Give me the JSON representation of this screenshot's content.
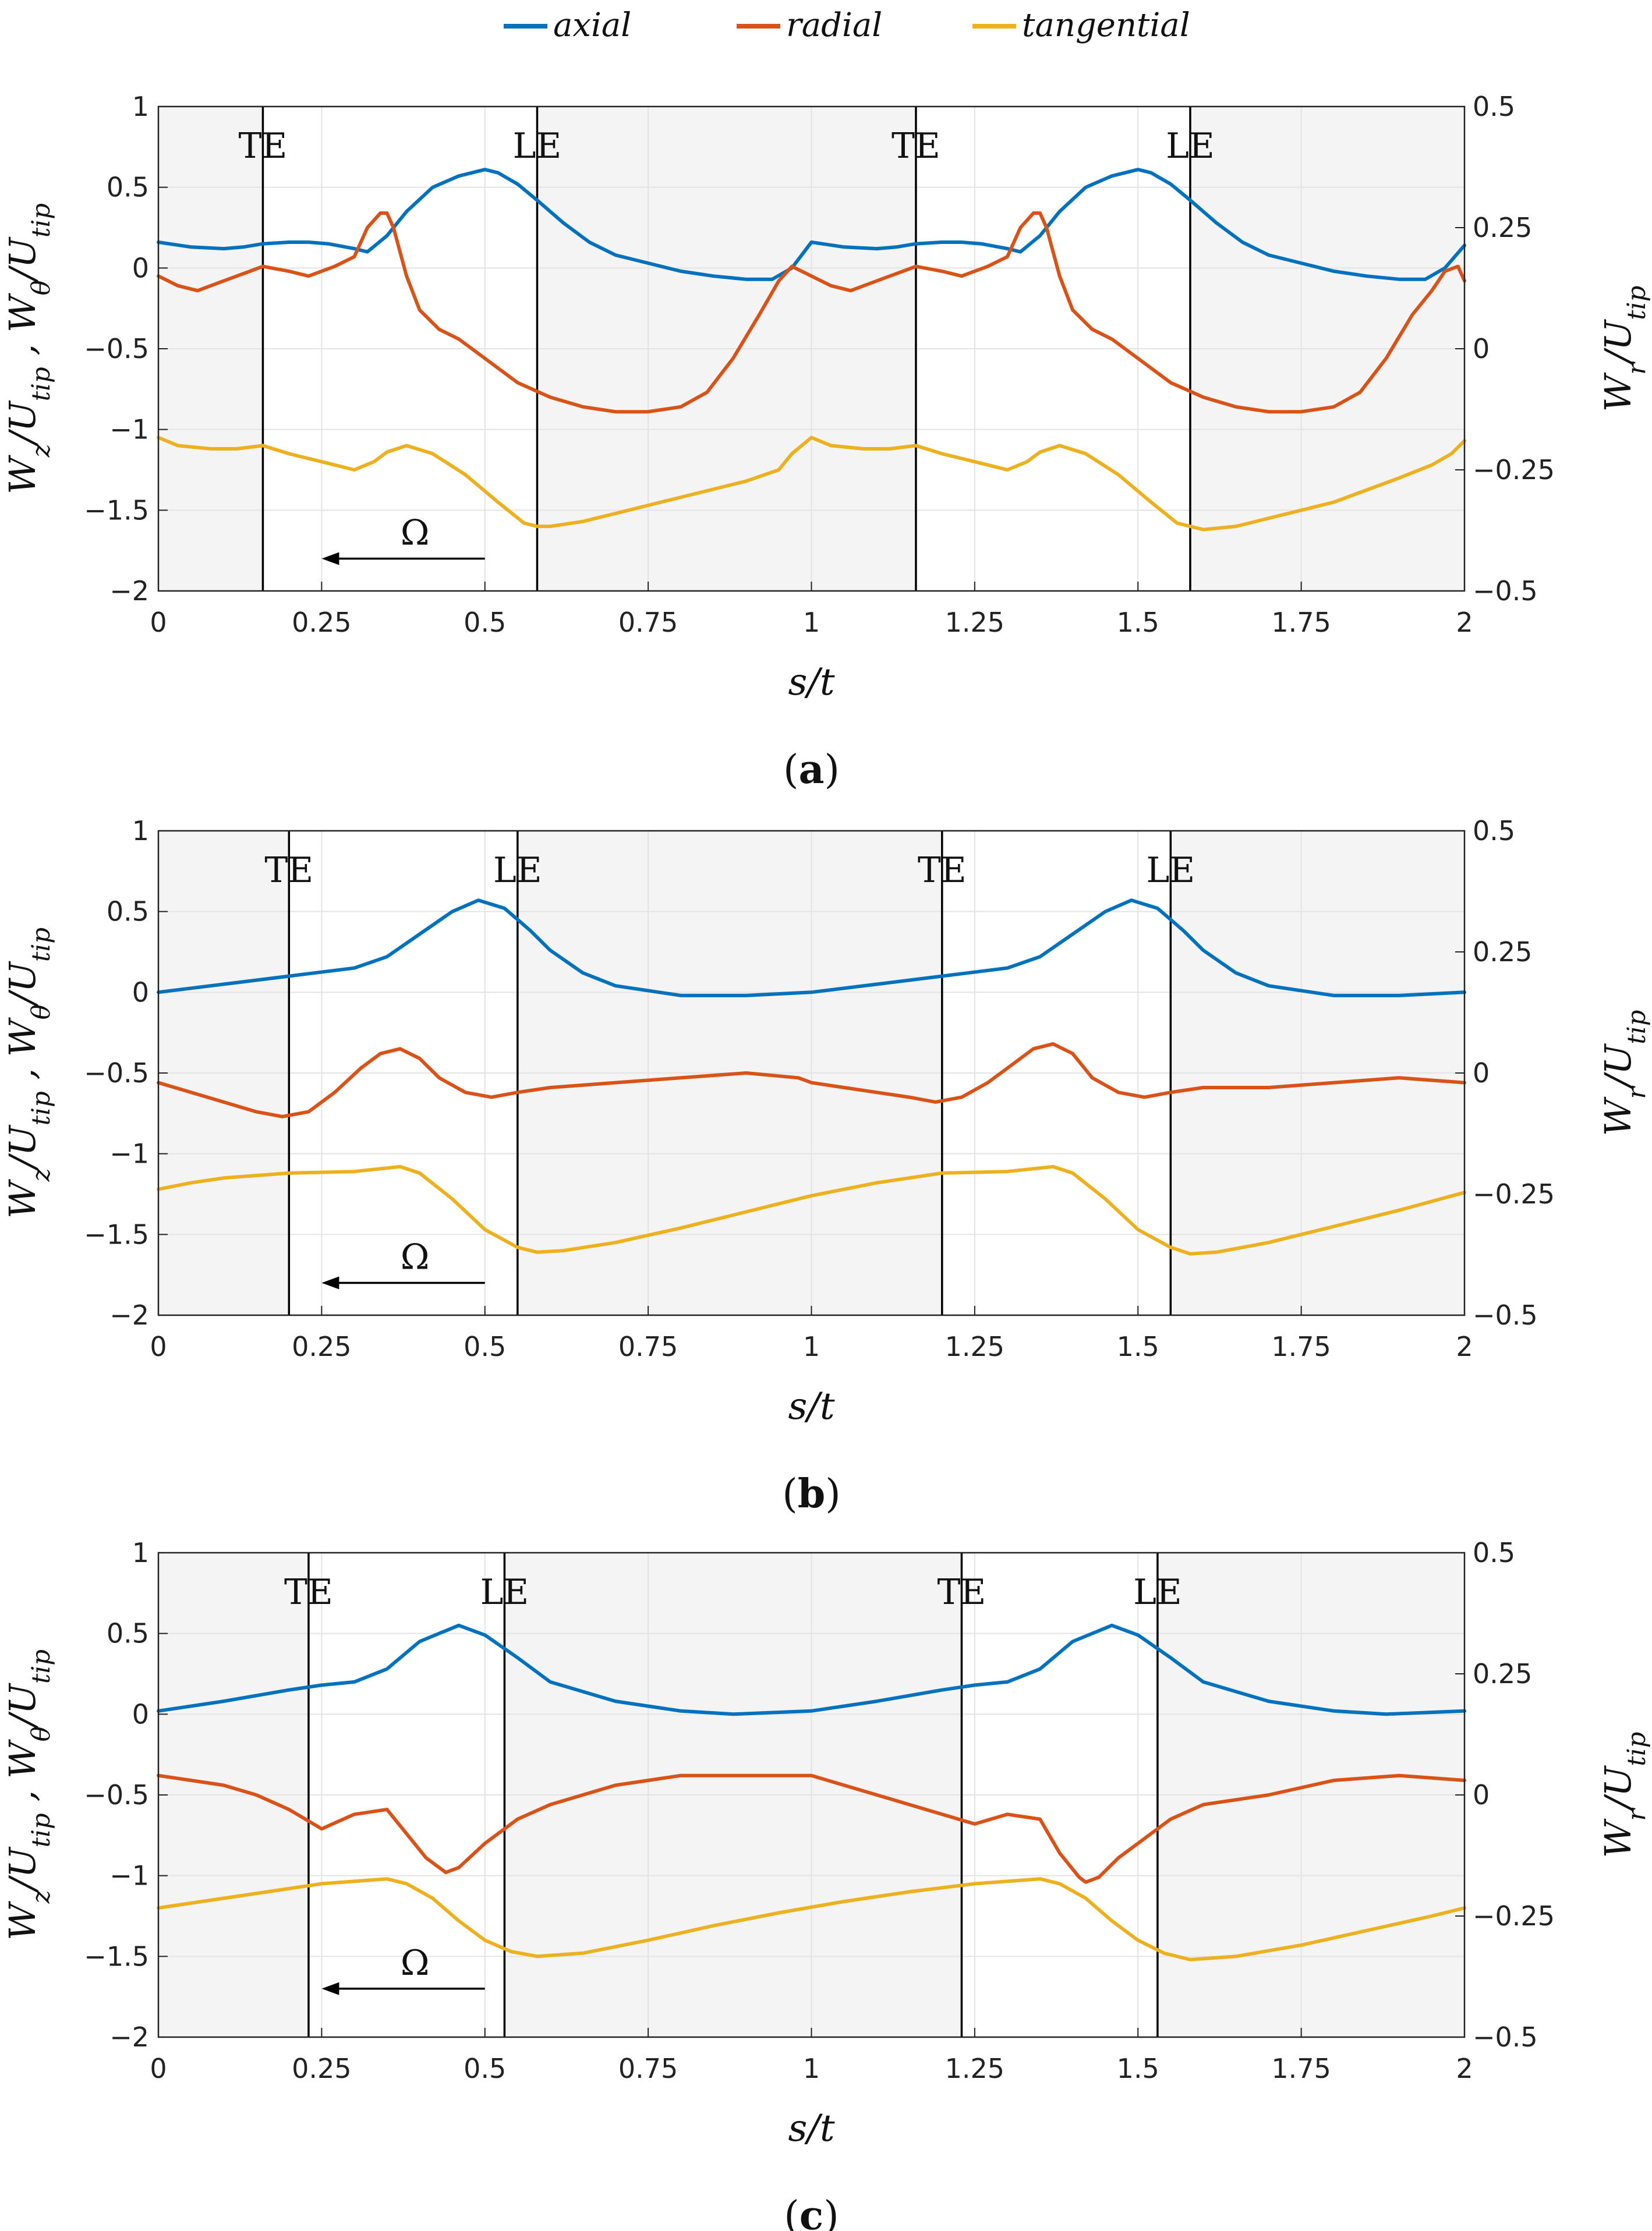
{
  "legend": {
    "placement": "top-center",
    "entries": [
      {
        "label": "axial",
        "color": "#0072BD"
      },
      {
        "label": "radial",
        "color": "#D95319"
      },
      {
        "label": "tangential",
        "color": "#EDB120"
      }
    ]
  },
  "chart_data": [
    {
      "type": "line",
      "caption_letter": "a",
      "xlabel": "s/t",
      "ylabel_left": "W_z/U_tip , W_θ/U_tip",
      "ylabel_right": "W_r/U_tip",
      "xlim": [
        0,
        2
      ],
      "ylim_left": [
        -2,
        1
      ],
      "ylim_right": [
        -0.5,
        0.5
      ],
      "x_ticks": [
        "0",
        "0.25",
        "0.5",
        "0.75",
        "1",
        "1.25",
        "1.5",
        "1.75",
        "2"
      ],
      "y_ticks_left": [
        "1",
        "0.5",
        "0",
        "-0.5",
        "-1",
        "-1.5",
        "-2"
      ],
      "y_ticks_right": [
        "0.5",
        "0.25",
        "0",
        "-0.25",
        "-0.5"
      ],
      "grid": true,
      "shaded_regions": [
        [
          0,
          0.16
        ],
        [
          0.58,
          1.16
        ],
        [
          1.58,
          2
        ]
      ],
      "vertical_lines": [
        {
          "x": 0.16,
          "label": "TE"
        },
        {
          "x": 0.58,
          "label": "LE"
        },
        {
          "x": 1.16,
          "label": "TE"
        },
        {
          "x": 1.58,
          "label": "LE"
        }
      ],
      "annotation": {
        "text": "Ω",
        "arrow_from": 0.5,
        "arrow_to": 0.25,
        "y": -1.8
      },
      "series": [
        {
          "name": "axial",
          "axis": "left",
          "color": "#0072BD",
          "x": [
            0,
            0.05,
            0.1,
            0.13,
            0.16,
            0.2,
            0.23,
            0.26,
            0.3,
            0.32,
            0.35,
            0.38,
            0.42,
            0.46,
            0.5,
            0.52,
            0.55,
            0.58,
            0.62,
            0.66,
            0.7,
            0.75,
            0.8,
            0.85,
            0.9,
            0.94,
            0.97,
            1,
            1.05,
            1.1,
            1.13,
            1.16,
            1.2,
            1.23,
            1.26,
            1.3,
            1.32,
            1.35,
            1.38,
            1.42,
            1.46,
            1.5,
            1.52,
            1.55,
            1.58,
            1.62,
            1.66,
            1.7,
            1.75,
            1.8,
            1.85,
            1.9,
            1.94,
            1.97,
            2
          ],
          "y": [
            0.16,
            0.13,
            0.12,
            0.13,
            0.15,
            0.16,
            0.16,
            0.15,
            0.12,
            0.1,
            0.2,
            0.35,
            0.5,
            0.57,
            0.61,
            0.59,
            0.52,
            0.42,
            0.28,
            0.16,
            0.08,
            0.03,
            -0.02,
            -0.05,
            -0.07,
            -0.07,
            0.0,
            0.16,
            0.13,
            0.12,
            0.13,
            0.15,
            0.16,
            0.16,
            0.15,
            0.12,
            0.1,
            0.2,
            0.35,
            0.5,
            0.57,
            0.61,
            0.59,
            0.52,
            0.42,
            0.28,
            0.16,
            0.08,
            0.03,
            -0.02,
            -0.05,
            -0.07,
            -0.07,
            0.0,
            0.14
          ]
        },
        {
          "name": "radial",
          "axis": "right",
          "color": "#D95319",
          "x": [
            0,
            0.03,
            0.06,
            0.1,
            0.14,
            0.16,
            0.2,
            0.23,
            0.27,
            0.3,
            0.32,
            0.34,
            0.35,
            0.36,
            0.38,
            0.4,
            0.43,
            0.46,
            0.5,
            0.55,
            0.6,
            0.65,
            0.7,
            0.75,
            0.8,
            0.84,
            0.88,
            0.92,
            0.95,
            0.97,
            1,
            1.03,
            1.06,
            1.1,
            1.14,
            1.16,
            1.2,
            1.23,
            1.27,
            1.3,
            1.32,
            1.34,
            1.35,
            1.36,
            1.38,
            1.4,
            1.43,
            1.46,
            1.5,
            1.55,
            1.6,
            1.65,
            1.7,
            1.75,
            1.8,
            1.84,
            1.88,
            1.92,
            1.95,
            1.97,
            1.99,
            2
          ],
          "y": [
            0.15,
            0.13,
            0.12,
            0.14,
            0.16,
            0.17,
            0.16,
            0.15,
            0.17,
            0.19,
            0.25,
            0.28,
            0.28,
            0.25,
            0.15,
            0.08,
            0.04,
            0.02,
            -0.02,
            -0.07,
            -0.1,
            -0.12,
            -0.13,
            -0.13,
            -0.12,
            -0.09,
            -0.02,
            0.07,
            0.14,
            0.17,
            0.15,
            0.13,
            0.12,
            0.14,
            0.16,
            0.17,
            0.16,
            0.15,
            0.17,
            0.19,
            0.25,
            0.28,
            0.28,
            0.25,
            0.15,
            0.08,
            0.04,
            0.02,
            -0.02,
            -0.07,
            -0.1,
            -0.12,
            -0.13,
            -0.13,
            -0.12,
            -0.09,
            -0.02,
            0.07,
            0.12,
            0.16,
            0.17,
            0.14
          ]
        },
        {
          "name": "tangential",
          "axis": "left",
          "color": "#EDB120",
          "x": [
            0,
            0.03,
            0.08,
            0.12,
            0.16,
            0.2,
            0.25,
            0.3,
            0.33,
            0.35,
            0.38,
            0.42,
            0.47,
            0.52,
            0.56,
            0.58,
            0.6,
            0.65,
            0.7,
            0.8,
            0.9,
            0.95,
            0.97,
            1,
            1.03,
            1.08,
            1.12,
            1.16,
            1.2,
            1.25,
            1.3,
            1.33,
            1.35,
            1.38,
            1.42,
            1.47,
            1.52,
            1.56,
            1.58,
            1.6,
            1.65,
            1.7,
            1.8,
            1.9,
            1.95,
            1.98,
            2
          ],
          "y": [
            -1.05,
            -1.1,
            -1.12,
            -1.12,
            -1.1,
            -1.15,
            -1.2,
            -1.25,
            -1.2,
            -1.14,
            -1.1,
            -1.15,
            -1.28,
            -1.45,
            -1.58,
            -1.6,
            -1.6,
            -1.57,
            -1.52,
            -1.42,
            -1.32,
            -1.25,
            -1.15,
            -1.05,
            -1.1,
            -1.12,
            -1.12,
            -1.1,
            -1.15,
            -1.2,
            -1.25,
            -1.2,
            -1.14,
            -1.1,
            -1.15,
            -1.28,
            -1.45,
            -1.58,
            -1.6,
            -1.62,
            -1.6,
            -1.55,
            -1.45,
            -1.3,
            -1.22,
            -1.15,
            -1.07
          ]
        }
      ]
    },
    {
      "type": "line",
      "caption_letter": "b",
      "xlabel": "s/t",
      "ylabel_left": "W_z/U_tip , W_θ/U_tip",
      "ylabel_right": "W_r/U_tip",
      "xlim": [
        0,
        2
      ],
      "ylim_left": [
        -2,
        1
      ],
      "ylim_right": [
        -0.5,
        0.5
      ],
      "x_ticks": [
        "0",
        "0.25",
        "0.5",
        "0.75",
        "1",
        "1.25",
        "1.5",
        "1.75",
        "2"
      ],
      "y_ticks_left": [
        "1",
        "0.5",
        "0",
        "-0.5",
        "-1",
        "-1.5",
        "-2"
      ],
      "y_ticks_right": [
        "0.5",
        "0.25",
        "0",
        "-0.25",
        "-0.5"
      ],
      "grid": true,
      "shaded_regions": [
        [
          0,
          0.2
        ],
        [
          0.55,
          1.2
        ],
        [
          1.55,
          2
        ]
      ],
      "vertical_lines": [
        {
          "x": 0.2,
          "label": "TE"
        },
        {
          "x": 0.55,
          "label": "LE"
        },
        {
          "x": 1.2,
          "label": "TE"
        },
        {
          "x": 1.55,
          "label": "LE"
        }
      ],
      "annotation": {
        "text": "Ω",
        "arrow_from": 0.5,
        "arrow_to": 0.25,
        "y": -1.8
      },
      "series": [
        {
          "name": "axial",
          "axis": "left",
          "color": "#0072BD",
          "x": [
            0,
            0.1,
            0.2,
            0.3,
            0.35,
            0.4,
            0.45,
            0.49,
            0.53,
            0.57,
            0.6,
            0.65,
            0.7,
            0.8,
            0.9,
            1,
            1.1,
            1.2,
            1.3,
            1.35,
            1.4,
            1.45,
            1.49,
            1.53,
            1.57,
            1.6,
            1.65,
            1.7,
            1.8,
            1.9,
            2
          ],
          "y": [
            0,
            0.05,
            0.1,
            0.15,
            0.22,
            0.36,
            0.5,
            0.57,
            0.52,
            0.38,
            0.26,
            0.12,
            0.04,
            -0.02,
            -0.02,
            0.0,
            0.05,
            0.1,
            0.15,
            0.22,
            0.36,
            0.5,
            0.57,
            0.52,
            0.38,
            0.26,
            0.12,
            0.04,
            -0.02,
            -0.02,
            0.0
          ]
        },
        {
          "name": "radial",
          "axis": "right",
          "color": "#D95319",
          "x": [
            0,
            0.05,
            0.1,
            0.15,
            0.19,
            0.23,
            0.27,
            0.31,
            0.34,
            0.37,
            0.4,
            0.43,
            0.47,
            0.51,
            0.55,
            0.6,
            0.7,
            0.8,
            0.9,
            0.98,
            1,
            1.05,
            1.1,
            1.15,
            1.19,
            1.23,
            1.27,
            1.31,
            1.34,
            1.37,
            1.4,
            1.43,
            1.47,
            1.51,
            1.55,
            1.6,
            1.7,
            1.8,
            1.9,
            2
          ],
          "y": [
            -0.02,
            -0.04,
            -0.06,
            -0.08,
            -0.09,
            -0.08,
            -0.04,
            0.01,
            0.04,
            0.05,
            0.03,
            -0.01,
            -0.04,
            -0.05,
            -0.04,
            -0.03,
            -0.02,
            -0.01,
            0.0,
            -0.01,
            -0.02,
            -0.03,
            -0.04,
            -0.05,
            -0.06,
            -0.05,
            -0.02,
            0.02,
            0.05,
            0.06,
            0.04,
            -0.01,
            -0.04,
            -0.05,
            -0.04,
            -0.03,
            -0.03,
            -0.02,
            -0.01,
            -0.02
          ]
        },
        {
          "name": "tangential",
          "axis": "left",
          "color": "#EDB120",
          "x": [
            0,
            0.05,
            0.1,
            0.2,
            0.3,
            0.37,
            0.4,
            0.45,
            0.5,
            0.55,
            0.58,
            0.62,
            0.7,
            0.8,
            0.9,
            1,
            1.1,
            1.2,
            1.3,
            1.37,
            1.4,
            1.45,
            1.5,
            1.55,
            1.58,
            1.62,
            1.7,
            1.8,
            1.9,
            2
          ],
          "y": [
            -1.22,
            -1.18,
            -1.15,
            -1.12,
            -1.11,
            -1.08,
            -1.12,
            -1.28,
            -1.47,
            -1.58,
            -1.61,
            -1.6,
            -1.55,
            -1.46,
            -1.36,
            -1.26,
            -1.18,
            -1.12,
            -1.11,
            -1.08,
            -1.12,
            -1.28,
            -1.47,
            -1.58,
            -1.62,
            -1.61,
            -1.55,
            -1.45,
            -1.35,
            -1.24
          ]
        }
      ]
    },
    {
      "type": "line",
      "caption_letter": "c",
      "xlabel": "s/t",
      "ylabel_left": "W_z/U_tip , W_θ/U_tip",
      "ylabel_right": "W_r/U_tip",
      "xlim": [
        0,
        2
      ],
      "ylim_left": [
        -2,
        1
      ],
      "ylim_right": [
        -0.5,
        0.5
      ],
      "x_ticks": [
        "0",
        "0.25",
        "0.5",
        "0.75",
        "1",
        "1.25",
        "1.5",
        "1.75",
        "2"
      ],
      "y_ticks_left": [
        "1",
        "0.5",
        "0",
        "-0.5",
        "-1",
        "-1.5",
        "-2"
      ],
      "y_ticks_right": [
        "0.5",
        "0.25",
        "0",
        "-0.25",
        "-0.5"
      ],
      "grid": true,
      "shaded_regions": [
        [
          0,
          0.23
        ],
        [
          0.53,
          1.23
        ],
        [
          1.53,
          2
        ]
      ],
      "vertical_lines": [
        {
          "x": 0.23,
          "label": "TE"
        },
        {
          "x": 0.53,
          "label": "LE"
        },
        {
          "x": 1.23,
          "label": "TE"
        },
        {
          "x": 1.53,
          "label": "LE"
        }
      ],
      "annotation": {
        "text": "Ω",
        "arrow_from": 0.5,
        "arrow_to": 0.25,
        "y": -1.7
      },
      "series": [
        {
          "name": "axial",
          "axis": "left",
          "color": "#0072BD",
          "x": [
            0,
            0.1,
            0.2,
            0.25,
            0.3,
            0.35,
            0.4,
            0.46,
            0.5,
            0.55,
            0.6,
            0.7,
            0.8,
            0.88,
            1,
            1.1,
            1.2,
            1.25,
            1.3,
            1.35,
            1.4,
            1.46,
            1.5,
            1.55,
            1.6,
            1.7,
            1.8,
            1.88,
            2
          ],
          "y": [
            0.02,
            0.08,
            0.15,
            0.18,
            0.2,
            0.28,
            0.45,
            0.55,
            0.49,
            0.35,
            0.2,
            0.08,
            0.02,
            0.0,
            0.02,
            0.08,
            0.15,
            0.18,
            0.2,
            0.28,
            0.45,
            0.55,
            0.49,
            0.35,
            0.2,
            0.08,
            0.02,
            0.0,
            0.02
          ]
        },
        {
          "name": "radial",
          "axis": "right",
          "color": "#D95319",
          "x": [
            0,
            0.05,
            0.1,
            0.15,
            0.2,
            0.25,
            0.3,
            0.35,
            0.38,
            0.41,
            0.44,
            0.46,
            0.5,
            0.55,
            0.6,
            0.7,
            0.8,
            0.9,
            1,
            1.05,
            1.1,
            1.15,
            1.2,
            1.25,
            1.3,
            1.35,
            1.38,
            1.41,
            1.42,
            1.44,
            1.47,
            1.5,
            1.55,
            1.6,
            1.7,
            1.8,
            1.9,
            2
          ],
          "y": [
            0.04,
            0.03,
            0.02,
            0.0,
            -0.03,
            -0.07,
            -0.04,
            -0.03,
            -0.08,
            -0.13,
            -0.16,
            -0.15,
            -0.1,
            -0.05,
            -0.02,
            0.02,
            0.04,
            0.04,
            0.04,
            0.02,
            0.0,
            -0.02,
            -0.04,
            -0.06,
            -0.04,
            -0.05,
            -0.12,
            -0.17,
            -0.18,
            -0.17,
            -0.13,
            -0.1,
            -0.05,
            -0.02,
            0.0,
            0.03,
            0.04,
            0.03
          ]
        },
        {
          "name": "tangential",
          "axis": "left",
          "color": "#EDB120",
          "x": [
            0,
            0.1,
            0.2,
            0.25,
            0.35,
            0.38,
            0.42,
            0.46,
            0.5,
            0.54,
            0.58,
            0.65,
            0.75,
            0.85,
            0.95,
            1.05,
            1.15,
            1.25,
            1.35,
            1.38,
            1.42,
            1.46,
            1.5,
            1.54,
            1.58,
            1.65,
            1.75,
            1.85,
            1.95,
            2
          ],
          "y": [
            -1.2,
            -1.14,
            -1.08,
            -1.05,
            -1.02,
            -1.05,
            -1.14,
            -1.28,
            -1.4,
            -1.47,
            -1.5,
            -1.48,
            -1.4,
            -1.31,
            -1.23,
            -1.16,
            -1.1,
            -1.05,
            -1.02,
            -1.05,
            -1.14,
            -1.28,
            -1.4,
            -1.48,
            -1.52,
            -1.5,
            -1.43,
            -1.34,
            -1.25,
            -1.2
          ]
        }
      ]
    }
  ]
}
